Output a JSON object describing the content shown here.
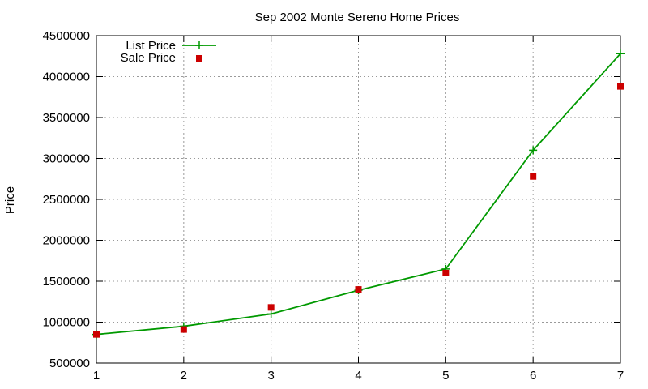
{
  "chart_data": {
    "type": "line",
    "title": "Sep 2002 Monte Sereno Home Prices",
    "xlabel": "",
    "ylabel": "Price",
    "x": [
      1,
      2,
      3,
      4,
      5,
      6,
      7
    ],
    "xlim": [
      1,
      7
    ],
    "ylim": [
      500000,
      4500000
    ],
    "x_ticks": [
      "1",
      "2",
      "3",
      "4",
      "5",
      "6",
      "7"
    ],
    "y_ticks": [
      "500000",
      "1000000",
      "1500000",
      "2000000",
      "2500000",
      "3000000",
      "3500000",
      "4000000",
      "4500000"
    ],
    "grid": true,
    "legend_position": "top-left",
    "series": [
      {
        "name": "List Price",
        "style": "line-with-plus-markers",
        "color": "#009900",
        "values": [
          850000,
          950000,
          1100000,
          1390000,
          1650000,
          3100000,
          4280000
        ]
      },
      {
        "name": "Sale Price",
        "style": "square-markers",
        "color": "#cc0000",
        "values": [
          850000,
          910000,
          1180000,
          1400000,
          1600000,
          2780000,
          3880000
        ]
      }
    ]
  }
}
